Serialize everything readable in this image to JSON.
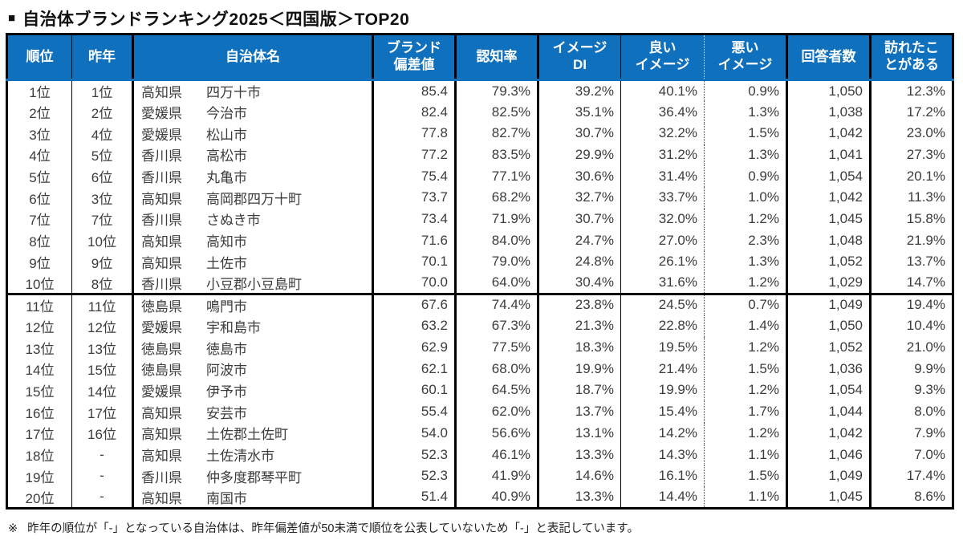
{
  "title": {
    "bullet": "■",
    "text": "自治体ブランドランキング2025＜四国版＞TOP20"
  },
  "colors": {
    "header_bg": "#0f70bd",
    "header_text": "#ffffff",
    "border": "#000000",
    "body_text": "#3c3c3c"
  },
  "table": {
    "columns": [
      {
        "key": "rank",
        "label": "順位"
      },
      {
        "key": "last_year",
        "label": "昨年"
      },
      {
        "key": "name",
        "label": "自治体名"
      },
      {
        "key": "brand_dev",
        "label": "ブランド\n偏差値"
      },
      {
        "key": "recognition",
        "label": "認知率"
      },
      {
        "key": "image_di",
        "label": "イメージ\nDI"
      },
      {
        "key": "good_image",
        "label": "良い\nイメージ"
      },
      {
        "key": "bad_image",
        "label": "悪い\nイメージ"
      },
      {
        "key": "respondents",
        "label": "回答者数"
      },
      {
        "key": "visited",
        "label": "訪れたこ\nとがある"
      }
    ],
    "rows": [
      {
        "rank": "1位",
        "last_year": "1位",
        "prefecture": "高知県",
        "city": "四万十市",
        "brand_dev": "85.4",
        "recognition": "79.3%",
        "image_di": "39.2%",
        "good_image": "40.1%",
        "bad_image": "0.9%",
        "respondents": "1,050",
        "visited": "12.3%"
      },
      {
        "rank": "2位",
        "last_year": "2位",
        "prefecture": "愛媛県",
        "city": "今治市",
        "brand_dev": "82.4",
        "recognition": "82.5%",
        "image_di": "35.1%",
        "good_image": "36.4%",
        "bad_image": "1.3%",
        "respondents": "1,038",
        "visited": "17.2%"
      },
      {
        "rank": "3位",
        "last_year": "4位",
        "prefecture": "愛媛県",
        "city": "松山市",
        "brand_dev": "77.8",
        "recognition": "82.7%",
        "image_di": "30.7%",
        "good_image": "32.2%",
        "bad_image": "1.5%",
        "respondents": "1,042",
        "visited": "23.0%"
      },
      {
        "rank": "4位",
        "last_year": "5位",
        "prefecture": "香川県",
        "city": "高松市",
        "brand_dev": "77.2",
        "recognition": "83.5%",
        "image_di": "29.9%",
        "good_image": "31.2%",
        "bad_image": "1.3%",
        "respondents": "1,041",
        "visited": "27.3%"
      },
      {
        "rank": "5位",
        "last_year": "6位",
        "prefecture": "香川県",
        "city": "丸亀市",
        "brand_dev": "75.4",
        "recognition": "77.1%",
        "image_di": "30.6%",
        "good_image": "31.4%",
        "bad_image": "0.9%",
        "respondents": "1,054",
        "visited": "20.1%"
      },
      {
        "rank": "6位",
        "last_year": "3位",
        "prefecture": "高知県",
        "city": "高岡郡四万十町",
        "brand_dev": "73.7",
        "recognition": "68.2%",
        "image_di": "32.7%",
        "good_image": "33.7%",
        "bad_image": "1.0%",
        "respondents": "1,042",
        "visited": "11.3%"
      },
      {
        "rank": "7位",
        "last_year": "7位",
        "prefecture": "香川県",
        "city": "さぬき市",
        "brand_dev": "73.4",
        "recognition": "71.9%",
        "image_di": "30.7%",
        "good_image": "32.0%",
        "bad_image": "1.2%",
        "respondents": "1,045",
        "visited": "15.8%"
      },
      {
        "rank": "8位",
        "last_year": "10位",
        "prefecture": "高知県",
        "city": "高知市",
        "brand_dev": "71.6",
        "recognition": "84.0%",
        "image_di": "24.7%",
        "good_image": "27.0%",
        "bad_image": "2.3%",
        "respondents": "1,048",
        "visited": "21.9%"
      },
      {
        "rank": "9位",
        "last_year": "9位",
        "prefecture": "高知県",
        "city": "土佐市",
        "brand_dev": "70.1",
        "recognition": "79.0%",
        "image_di": "24.8%",
        "good_image": "26.1%",
        "bad_image": "1.3%",
        "respondents": "1,052",
        "visited": "13.7%"
      },
      {
        "rank": "10位",
        "last_year": "8位",
        "prefecture": "香川県",
        "city": "小豆郡小豆島町",
        "brand_dev": "70.0",
        "recognition": "64.0%",
        "image_di": "30.4%",
        "good_image": "31.6%",
        "bad_image": "1.2%",
        "respondents": "1,029",
        "visited": "14.7%"
      },
      {
        "rank": "11位",
        "last_year": "11位",
        "prefecture": "徳島県",
        "city": "鳴門市",
        "brand_dev": "67.6",
        "recognition": "74.4%",
        "image_di": "23.8%",
        "good_image": "24.5%",
        "bad_image": "0.7%",
        "respondents": "1,049",
        "visited": "19.4%"
      },
      {
        "rank": "12位",
        "last_year": "12位",
        "prefecture": "愛媛県",
        "city": "宇和島市",
        "brand_dev": "63.2",
        "recognition": "67.3%",
        "image_di": "21.3%",
        "good_image": "22.8%",
        "bad_image": "1.4%",
        "respondents": "1,050",
        "visited": "10.4%"
      },
      {
        "rank": "13位",
        "last_year": "13位",
        "prefecture": "徳島県",
        "city": "徳島市",
        "brand_dev": "62.9",
        "recognition": "77.5%",
        "image_di": "18.3%",
        "good_image": "19.5%",
        "bad_image": "1.2%",
        "respondents": "1,052",
        "visited": "21.0%"
      },
      {
        "rank": "14位",
        "last_year": "15位",
        "prefecture": "徳島県",
        "city": "阿波市",
        "brand_dev": "62.1",
        "recognition": "68.0%",
        "image_di": "19.9%",
        "good_image": "21.4%",
        "bad_image": "1.5%",
        "respondents": "1,036",
        "visited": "9.9%"
      },
      {
        "rank": "15位",
        "last_year": "14位",
        "prefecture": "愛媛県",
        "city": "伊予市",
        "brand_dev": "60.1",
        "recognition": "64.5%",
        "image_di": "18.7%",
        "good_image": "19.9%",
        "bad_image": "1.2%",
        "respondents": "1,054",
        "visited": "9.3%"
      },
      {
        "rank": "16位",
        "last_year": "17位",
        "prefecture": "高知県",
        "city": "安芸市",
        "brand_dev": "55.4",
        "recognition": "62.0%",
        "image_di": "13.7%",
        "good_image": "15.4%",
        "bad_image": "1.7%",
        "respondents": "1,044",
        "visited": "8.0%"
      },
      {
        "rank": "17位",
        "last_year": "16位",
        "prefecture": "高知県",
        "city": "土佐郡土佐町",
        "brand_dev": "54.0",
        "recognition": "56.6%",
        "image_di": "13.1%",
        "good_image": "14.2%",
        "bad_image": "1.2%",
        "respondents": "1,042",
        "visited": "7.9%"
      },
      {
        "rank": "18位",
        "last_year": "-",
        "prefecture": "高知県",
        "city": "土佐清水市",
        "brand_dev": "52.3",
        "recognition": "46.1%",
        "image_di": "13.3%",
        "good_image": "14.3%",
        "bad_image": "1.1%",
        "respondents": "1,046",
        "visited": "7.0%"
      },
      {
        "rank": "19位",
        "last_year": "-",
        "prefecture": "香川県",
        "city": "仲多度郡琴平町",
        "brand_dev": "52.3",
        "recognition": "41.9%",
        "image_di": "14.6%",
        "good_image": "16.1%",
        "bad_image": "1.5%",
        "respondents": "1,049",
        "visited": "17.4%"
      },
      {
        "rank": "20位",
        "last_year": "-",
        "prefecture": "高知県",
        "city": "南国市",
        "brand_dev": "51.4",
        "recognition": "40.9%",
        "image_di": "13.3%",
        "good_image": "14.4%",
        "bad_image": "1.1%",
        "respondents": "1,045",
        "visited": "8.6%"
      }
    ],
    "top_block_rows": 10
  },
  "footnote": {
    "mark": "※",
    "text": "昨年の順位が「-」となっている自治体は、昨年偏差値が50未満で順位を公表していないため「-」と表記しています。"
  }
}
